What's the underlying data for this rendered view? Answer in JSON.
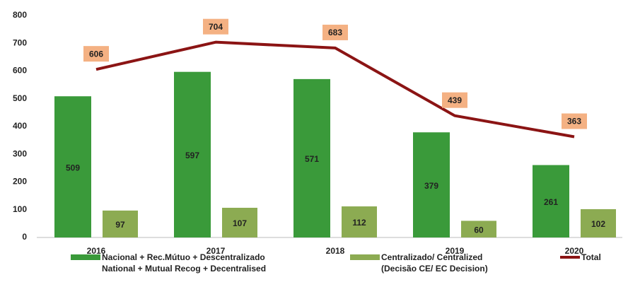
{
  "chart_data": {
    "type": "bar_line",
    "categories": [
      "2016",
      "2017",
      "2018",
      "2019",
      "2020"
    ],
    "series": [
      {
        "name": "Nacional + Rec.Mútuo + Descentralizado\nNational + Mutual Recog + Decentralised",
        "color": "#3a9a3a",
        "type": "bar",
        "values": [
          509,
          597,
          571,
          379,
          261
        ]
      },
      {
        "name": "Centralizado/ Centralized\n(Decisão CE/ EC Decision)",
        "color": "#8cab52",
        "type": "bar",
        "values": [
          97,
          107,
          112,
          60,
          102
        ]
      },
      {
        "name": "Total",
        "color": "#8b1414",
        "type": "line",
        "values": [
          606,
          704,
          683,
          439,
          363
        ],
        "label_color": "#f4b183"
      }
    ],
    "ylim": [
      0,
      800
    ],
    "yticks": [
      0,
      100,
      200,
      300,
      400,
      500,
      600,
      700,
      800
    ],
    "grid": false
  }
}
